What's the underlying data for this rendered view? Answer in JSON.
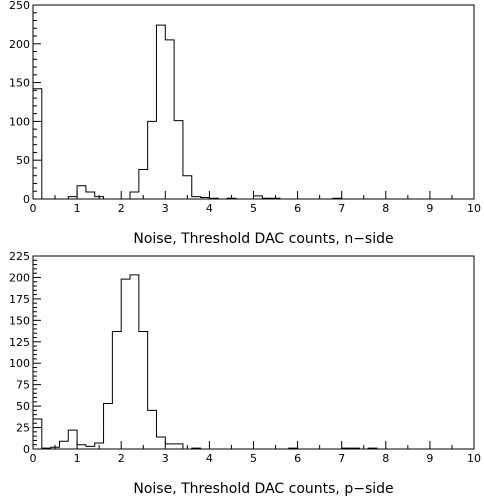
{
  "chart_data": [
    {
      "type": "bar",
      "style": "step-histogram",
      "xlabel": "Noise, Threshold DAC counts, n−side",
      "ylabel": "",
      "title": "",
      "xlim": [
        0,
        10
      ],
      "ylim": [
        0,
        250
      ],
      "bin_width": 0.2,
      "xticks": [
        "0",
        "1",
        "2",
        "3",
        "4",
        "5",
        "6",
        "7",
        "8",
        "9",
        "10"
      ],
      "yticks": [
        "0",
        "50",
        "100",
        "150",
        "200",
        "250"
      ],
      "ytick_values": [
        0,
        50,
        100,
        150,
        200,
        250
      ],
      "values": [
        142,
        0,
        0,
        0,
        3,
        17,
        9,
        3,
        0,
        0,
        0,
        9,
        38,
        100,
        224,
        205,
        101,
        30,
        3,
        2,
        1,
        0,
        1,
        0,
        0,
        4,
        1,
        1,
        0,
        0,
        0,
        0,
        0,
        0,
        1,
        0,
        0,
        0,
        0,
        0,
        0,
        0,
        0,
        0,
        0,
        0,
        0,
        0,
        0,
        0
      ]
    },
    {
      "type": "bar",
      "style": "step-histogram",
      "xlabel": "Noise, Threshold DAC counts, p−side",
      "ylabel": "",
      "title": "",
      "xlim": [
        0,
        10
      ],
      "ylim": [
        0,
        225
      ],
      "bin_width": 0.2,
      "xticks": [
        "0",
        "1",
        "2",
        "3",
        "4",
        "5",
        "6",
        "7",
        "8",
        "9",
        "10"
      ],
      "yticks": [
        "0",
        "25",
        "50",
        "75",
        "100",
        "125",
        "150",
        "175",
        "200",
        "225"
      ],
      "ytick_values": [
        0,
        25,
        50,
        75,
        100,
        125,
        150,
        175,
        200,
        225
      ],
      "values": [
        35,
        1,
        2,
        9,
        22,
        5,
        3,
        7,
        53,
        137,
        198,
        203,
        137,
        45,
        14,
        6,
        6,
        0,
        1,
        0,
        0,
        0,
        0,
        0,
        0,
        0,
        0,
        0,
        0,
        1,
        0,
        0,
        0,
        0,
        0,
        1,
        1,
        0,
        1,
        0,
        0,
        0,
        0,
        0,
        0,
        0,
        0,
        0,
        0,
        0
      ]
    }
  ]
}
